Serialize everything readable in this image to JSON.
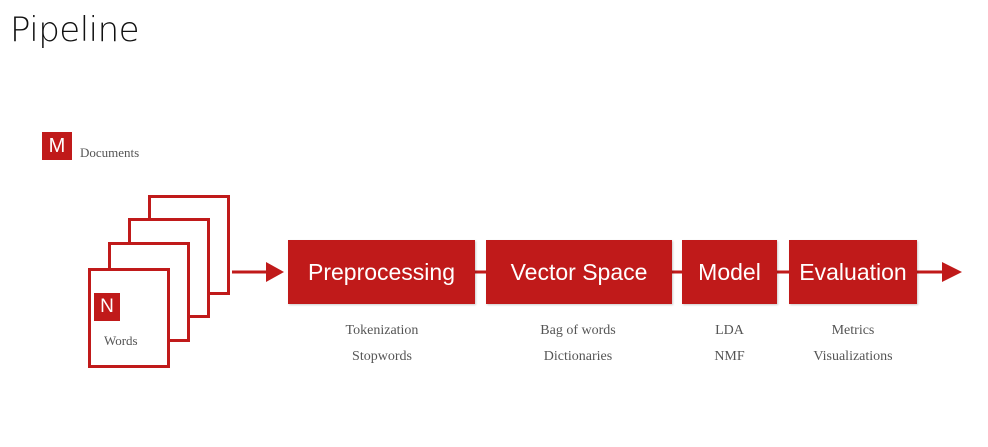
{
  "title": "Pipeline",
  "legend": {
    "badge": "M",
    "label": "Documents"
  },
  "document": {
    "badge": "N",
    "label": "Words"
  },
  "stages": [
    {
      "label": "Preprocessing",
      "details": [
        "Tokenization",
        "Stopwords"
      ]
    },
    {
      "label": "Vector Space",
      "details": [
        "Bag of words",
        "Dictionaries"
      ]
    },
    {
      "label": "Model",
      "details": [
        "LDA",
        "NMF"
      ]
    },
    {
      "label": "Evaluation",
      "details": [
        "Metrics",
        "Visualizations"
      ]
    }
  ],
  "colors": {
    "accent": "#c01a1a",
    "text_muted": "#555555"
  }
}
